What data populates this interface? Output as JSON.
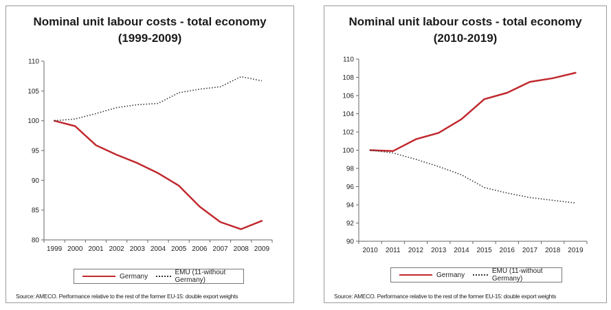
{
  "chart_data": [
    {
      "type": "line",
      "title": "Nominal unit labour costs - total economy",
      "subtitle": "(1999-2009)",
      "x": [
        "1999",
        "2000",
        "2001",
        "2002",
        "2003",
        "2004",
        "2005",
        "2006",
        "2007",
        "2008",
        "2009"
      ],
      "yticks": [
        "80",
        "85",
        "90",
        "95",
        "100",
        "105",
        "110"
      ],
      "ylim": [
        80,
        110
      ],
      "series": [
        {
          "name": "Germany",
          "style": "solid",
          "color": "#c0282d",
          "values": [
            100.0,
            99.1,
            95.9,
            94.3,
            92.9,
            91.2,
            89.1,
            85.6,
            83.0,
            81.8,
            83.2
          ]
        },
        {
          "name": "EMU (11-without Germany)",
          "style": "dotted",
          "color": "#333333",
          "values": [
            100.0,
            100.3,
            101.2,
            102.2,
            102.7,
            102.9,
            104.7,
            105.3,
            105.7,
            107.4,
            106.7
          ]
        }
      ],
      "legend": "bottom",
      "source": "Source: AMECO. Performance relative to the rest of the former EU-15: double export weights"
    },
    {
      "type": "line",
      "title": "Nominal unit labour costs - total economy",
      "subtitle": "(2010-2019)",
      "x": [
        "2010",
        "2011",
        "2012",
        "2013",
        "2014",
        "2015",
        "2016",
        "2017",
        "2018",
        "2019"
      ],
      "yticks": [
        "90",
        "92",
        "94",
        "96",
        "98",
        "100",
        "102",
        "104",
        "106",
        "108",
        "110"
      ],
      "ylim": [
        90,
        110
      ],
      "series": [
        {
          "name": "Germany",
          "style": "solid",
          "color": "#c0282d",
          "values": [
            100.0,
            99.9,
            101.2,
            101.9,
            103.4,
            105.6,
            106.3,
            107.5,
            107.9,
            108.5
          ]
        },
        {
          "name": "EMU (11-without Germany)",
          "style": "dotted",
          "color": "#333333",
          "values": [
            100.0,
            99.7,
            99.0,
            98.2,
            97.3,
            95.9,
            95.3,
            94.8,
            94.5,
            94.2
          ]
        }
      ],
      "legend": "bottom",
      "source": "Source: AMECO. Performance relative to the rest of the former EU-15: double export weights"
    }
  ]
}
